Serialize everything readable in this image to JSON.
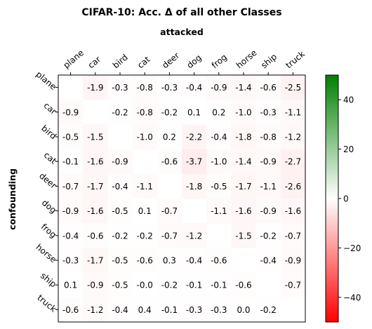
{
  "chart_data": {
    "type": "heatmap",
    "title": "CIFAR-10: Acc. Δ of all other Classes",
    "xlabel": "attacked",
    "ylabel": "confounding",
    "x_categories": [
      "plane",
      "car",
      "bird",
      "cat",
      "deer",
      "dog",
      "frog",
      "horse",
      "ship",
      "truck"
    ],
    "y_categories": [
      "plane",
      "car",
      "bird",
      "cat",
      "deer",
      "dog",
      "frog",
      "horse",
      "ship",
      "truck"
    ],
    "values": [
      [
        null,
        -1.9,
        -0.3,
        -0.8,
        -0.3,
        -0.4,
        -0.9,
        -1.4,
        -0.6,
        -2.5
      ],
      [
        -0.9,
        null,
        -0.2,
        -0.8,
        -0.2,
        0.1,
        0.2,
        -1.0,
        -0.3,
        -1.1
      ],
      [
        -0.5,
        -1.5,
        null,
        -1.0,
        0.2,
        -2.2,
        -0.4,
        -1.8,
        -0.8,
        -1.2
      ],
      [
        -0.1,
        -1.6,
        -0.9,
        null,
        -0.6,
        -3.7,
        -1.0,
        -1.4,
        -0.9,
        -2.7
      ],
      [
        -0.7,
        -1.7,
        -0.4,
        -1.1,
        null,
        -1.8,
        -0.5,
        -1.7,
        -1.1,
        -2.6
      ],
      [
        -0.9,
        -1.6,
        -0.5,
        0.1,
        -0.7,
        null,
        -1.1,
        -1.6,
        -0.9,
        -1.6
      ],
      [
        -0.4,
        -0.6,
        -0.2,
        -0.2,
        -0.7,
        -1.2,
        null,
        -1.5,
        -0.2,
        -0.7
      ],
      [
        -0.3,
        -1.7,
        -0.5,
        -0.6,
        0.3,
        -0.4,
        -0.6,
        null,
        -0.4,
        -0.9
      ],
      [
        0.1,
        -0.9,
        -0.5,
        "-0.0",
        -0.2,
        -0.1,
        -0.1,
        -0.6,
        null,
        -0.7
      ],
      [
        -0.6,
        -1.2,
        -0.4,
        0.4,
        -0.1,
        -0.3,
        -0.3,
        0.0,
        -0.2,
        null
      ]
    ],
    "colorbar": {
      "range": [
        -50,
        50
      ],
      "ticks": [
        40,
        20,
        0,
        -20,
        -40
      ],
      "colors": {
        "low": "#ff0000",
        "mid": "#ffffff",
        "high": "#008000"
      }
    },
    "grid": false,
    "x_tick_position": "top"
  }
}
